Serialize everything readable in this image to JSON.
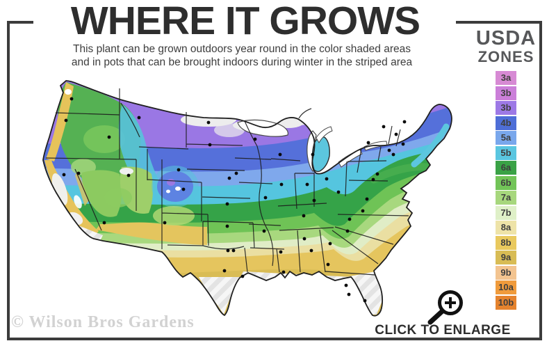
{
  "header": {
    "title": "WHERE IT GROWS",
    "subtitle_line1": "This plant can be grown outdoors year round in the color shaded areas",
    "subtitle_line2": "and in pots that can be brought indoors during winter in the striped area"
  },
  "legend": {
    "title_line1": "USDA",
    "title_line2": "ZONES",
    "zones": [
      {
        "label": "3a",
        "color": "#d78ad4"
      },
      {
        "label": "3b",
        "color": "#cb7fd9"
      },
      {
        "label": "3b",
        "color": "#9d79e6"
      },
      {
        "label": "4b",
        "color": "#4e6ed7"
      },
      {
        "label": "5a",
        "color": "#79a7ec"
      },
      {
        "label": "5b",
        "color": "#5ac6e0"
      },
      {
        "label": "6a",
        "color": "#3aa246"
      },
      {
        "label": "6b",
        "color": "#72c458"
      },
      {
        "label": "7a",
        "color": "#a7d77d"
      },
      {
        "label": "7b",
        "color": "#dff0c8"
      },
      {
        "label": "8a",
        "color": "#eee3a8"
      },
      {
        "label": "8b",
        "color": "#e9c95e"
      },
      {
        "label": "9a",
        "color": "#d8bc55"
      },
      {
        "label": "9b",
        "color": "#f3c490"
      },
      {
        "label": "10a",
        "color": "#f09b3c"
      },
      {
        "label": "10b",
        "color": "#e5832e"
      }
    ]
  },
  "footer": {
    "watermark": "© Wilson Bros Gardens",
    "enlarge_label": "CLICK TO ENLARGE"
  }
}
